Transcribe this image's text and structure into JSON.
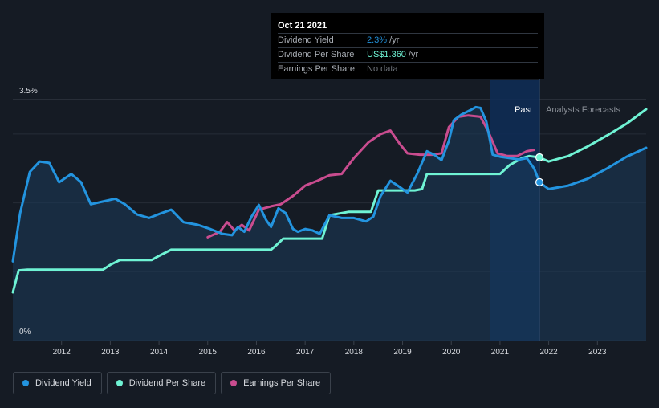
{
  "colors": {
    "background": "#151b24",
    "dividend_yield": "#2394df",
    "dividend_per_share": "#6ff3d4",
    "earnings_per_share": "#c94c8f",
    "gridline": "#262d37",
    "forecast_band": "#0e2d57"
  },
  "tooltip": {
    "date": "Oct 21 2021",
    "rows": [
      {
        "label": "Dividend Yield",
        "value": "2.3%",
        "unit": " /yr"
      },
      {
        "label": "Dividend Per Share",
        "value": "US$1.360",
        "unit": " /yr"
      },
      {
        "label": "Earnings Per Share",
        "value": "No data",
        "unit": ""
      }
    ]
  },
  "legend": [
    {
      "label": "Dividend Yield",
      "color": "#2394df"
    },
    {
      "label": "Dividend Per Share",
      "color": "#6ff3d4"
    },
    {
      "label": "Earnings Per Share",
      "color": "#c94c8f"
    }
  ],
  "chart_data": {
    "type": "line",
    "y_axis_labels": [
      "3.5%",
      "0%"
    ],
    "ylim": [
      0,
      3.5
    ],
    "xlim": [
      2011.0,
      2024.0
    ],
    "x_ticks": [
      "2012",
      "2013",
      "2014",
      "2015",
      "2016",
      "2017",
      "2018",
      "2019",
      "2020",
      "2021",
      "2022",
      "2023"
    ],
    "past_label": "Past",
    "forecast_label": "Analysts Forecasts",
    "tooltip_x": 2021.81,
    "forecast_start_x": 2020.8,
    "grid": true,
    "series": [
      {
        "name": "Dividend Yield",
        "color": "#2394df",
        "past_points": [
          [
            2011.0,
            1.15
          ],
          [
            2011.15,
            1.85
          ],
          [
            2011.35,
            2.45
          ],
          [
            2011.55,
            2.6
          ],
          [
            2011.75,
            2.58
          ],
          [
            2011.95,
            2.3
          ],
          [
            2012.2,
            2.42
          ],
          [
            2012.4,
            2.3
          ],
          [
            2012.6,
            1.98
          ],
          [
            2012.85,
            2.02
          ],
          [
            2013.1,
            2.06
          ],
          [
            2013.3,
            1.98
          ],
          [
            2013.55,
            1.83
          ],
          [
            2013.8,
            1.78
          ],
          [
            2014.05,
            1.85
          ],
          [
            2014.25,
            1.9
          ],
          [
            2014.5,
            1.72
          ],
          [
            2014.8,
            1.68
          ],
          [
            2015.05,
            1.62
          ],
          [
            2015.3,
            1.55
          ],
          [
            2015.5,
            1.53
          ],
          [
            2015.62,
            1.65
          ],
          [
            2015.75,
            1.58
          ],
          [
            2015.9,
            1.8
          ],
          [
            2016.05,
            1.97
          ],
          [
            2016.2,
            1.75
          ],
          [
            2016.3,
            1.65
          ],
          [
            2016.45,
            1.92
          ],
          [
            2016.6,
            1.85
          ],
          [
            2016.75,
            1.62
          ],
          [
            2016.85,
            1.58
          ],
          [
            2017.0,
            1.62
          ],
          [
            2017.15,
            1.6
          ],
          [
            2017.3,
            1.55
          ],
          [
            2017.5,
            1.82
          ],
          [
            2017.75,
            1.78
          ],
          [
            2018.0,
            1.78
          ],
          [
            2018.25,
            1.73
          ],
          [
            2018.4,
            1.8
          ],
          [
            2018.55,
            2.1
          ],
          [
            2018.75,
            2.32
          ],
          [
            2018.9,
            2.25
          ],
          [
            2019.1,
            2.15
          ],
          [
            2019.3,
            2.42
          ],
          [
            2019.5,
            2.75
          ],
          [
            2019.65,
            2.7
          ],
          [
            2019.8,
            2.62
          ],
          [
            2019.95,
            2.9
          ],
          [
            2020.05,
            3.2
          ],
          [
            2020.2,
            3.28
          ],
          [
            2020.4,
            3.35
          ],
          [
            2020.5,
            3.39
          ],
          [
            2020.6,
            3.38
          ],
          [
            2020.72,
            3.18
          ],
          [
            2020.85,
            2.7
          ],
          [
            2021.0,
            2.67
          ],
          [
            2021.2,
            2.65
          ],
          [
            2021.4,
            2.63
          ],
          [
            2021.55,
            2.65
          ],
          [
            2021.7,
            2.5
          ],
          [
            2021.81,
            2.3
          ]
        ],
        "forecast_points": [
          [
            2021.81,
            2.3
          ],
          [
            2022.0,
            2.2
          ],
          [
            2022.4,
            2.25
          ],
          [
            2022.8,
            2.35
          ],
          [
            2023.2,
            2.5
          ],
          [
            2023.6,
            2.67
          ],
          [
            2024.0,
            2.8
          ]
        ]
      },
      {
        "name": "Dividend Per Share",
        "color": "#6ff3d4",
        "past_points": [
          [
            2011.0,
            0.7
          ],
          [
            2011.12,
            1.02
          ],
          [
            2011.3,
            1.03
          ],
          [
            2012.4,
            1.03
          ],
          [
            2012.85,
            1.03
          ],
          [
            2013.0,
            1.1
          ],
          [
            2013.2,
            1.17
          ],
          [
            2013.5,
            1.17
          ],
          [
            2013.85,
            1.17
          ],
          [
            2014.0,
            1.23
          ],
          [
            2014.25,
            1.32
          ],
          [
            2014.6,
            1.32
          ],
          [
            2016.3,
            1.32
          ],
          [
            2016.4,
            1.38
          ],
          [
            2016.55,
            1.48
          ],
          [
            2017.05,
            1.48
          ],
          [
            2017.35,
            1.48
          ],
          [
            2017.5,
            1.82
          ],
          [
            2017.9,
            1.87
          ],
          [
            2018.05,
            1.87
          ],
          [
            2018.35,
            1.87
          ],
          [
            2018.5,
            2.18
          ],
          [
            2018.8,
            2.18
          ],
          [
            2019.25,
            2.18
          ],
          [
            2019.4,
            2.2
          ],
          [
            2019.5,
            2.42
          ],
          [
            2020.0,
            2.42
          ],
          [
            2020.3,
            2.42
          ],
          [
            2020.5,
            2.42
          ],
          [
            2021.0,
            2.42
          ],
          [
            2021.2,
            2.55
          ],
          [
            2021.45,
            2.65
          ],
          [
            2021.6,
            2.68
          ],
          [
            2021.81,
            2.66
          ]
        ],
        "forecast_points": [
          [
            2021.81,
            2.66
          ],
          [
            2022.0,
            2.6
          ],
          [
            2022.4,
            2.68
          ],
          [
            2022.8,
            2.82
          ],
          [
            2023.2,
            2.98
          ],
          [
            2023.6,
            3.15
          ],
          [
            2024.0,
            3.36
          ]
        ]
      },
      {
        "name": "Earnings Per Share",
        "color": "#c94c8f",
        "past_points": [
          [
            2015.0,
            1.5
          ],
          [
            2015.25,
            1.58
          ],
          [
            2015.4,
            1.72
          ],
          [
            2015.55,
            1.6
          ],
          [
            2015.7,
            1.68
          ],
          [
            2015.85,
            1.6
          ],
          [
            2016.05,
            1.9
          ],
          [
            2016.3,
            1.95
          ],
          [
            2016.5,
            1.98
          ],
          [
            2016.75,
            2.1
          ],
          [
            2017.0,
            2.25
          ],
          [
            2017.25,
            2.32
          ],
          [
            2017.5,
            2.4
          ],
          [
            2017.75,
            2.42
          ],
          [
            2018.0,
            2.65
          ],
          [
            2018.3,
            2.88
          ],
          [
            2018.55,
            3.0
          ],
          [
            2018.75,
            3.05
          ],
          [
            2018.95,
            2.85
          ],
          [
            2019.1,
            2.72
          ],
          [
            2019.35,
            2.7
          ],
          [
            2019.6,
            2.7
          ],
          [
            2019.8,
            2.72
          ],
          [
            2019.95,
            3.1
          ],
          [
            2020.15,
            3.25
          ],
          [
            2020.35,
            3.27
          ],
          [
            2020.6,
            3.25
          ],
          [
            2020.75,
            3.05
          ],
          [
            2020.95,
            2.72
          ],
          [
            2021.15,
            2.68
          ],
          [
            2021.35,
            2.68
          ],
          [
            2021.55,
            2.75
          ],
          [
            2021.7,
            2.77
          ]
        ],
        "forecast_points": []
      }
    ]
  }
}
